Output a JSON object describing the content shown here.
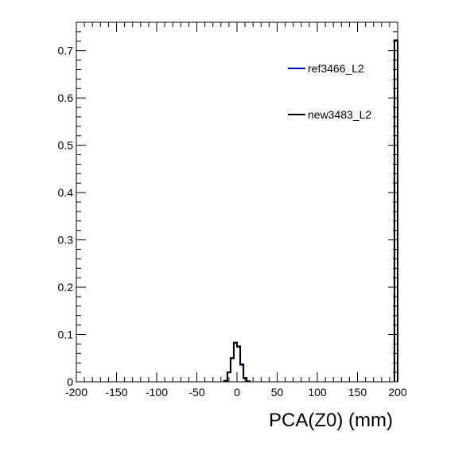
{
  "chart_data": {
    "type": "line",
    "title": "",
    "xlabel": "PCA(Z0) (mm)",
    "ylabel": "",
    "xlim": [
      -200,
      200
    ],
    "ylim": [
      0,
      0.76
    ],
    "grid": false,
    "legend_placement": "top-right",
    "x_ticks": [
      "-200",
      "-150",
      "-100",
      "-50",
      "0",
      "50",
      "100",
      "150",
      "200"
    ],
    "y_ticks": [
      "0",
      "0.1",
      "0.2",
      "0.3",
      "0.4",
      "0.5",
      "0.6",
      "0.7"
    ],
    "bin_width": 4,
    "series": [
      {
        "name": "ref3466_L2",
        "color": "#0000cc",
        "bins": [
          [
            -16,
            0.002
          ],
          [
            -12,
            0.02
          ],
          [
            -8,
            0.05
          ],
          [
            -4,
            0.083
          ],
          [
            0,
            0.074
          ],
          [
            4,
            0.037
          ],
          [
            8,
            0.008
          ],
          [
            12,
            0.001
          ],
          [
            196,
            0.722
          ]
        ]
      },
      {
        "name": "new3483_L2",
        "color": "#000000",
        "bins": [
          [
            -16,
            0.002
          ],
          [
            -12,
            0.02
          ],
          [
            -8,
            0.05
          ],
          [
            -4,
            0.082
          ],
          [
            0,
            0.075
          ],
          [
            4,
            0.036
          ],
          [
            8,
            0.008
          ],
          [
            12,
            0.001
          ],
          [
            196,
            0.722
          ]
        ]
      }
    ]
  }
}
